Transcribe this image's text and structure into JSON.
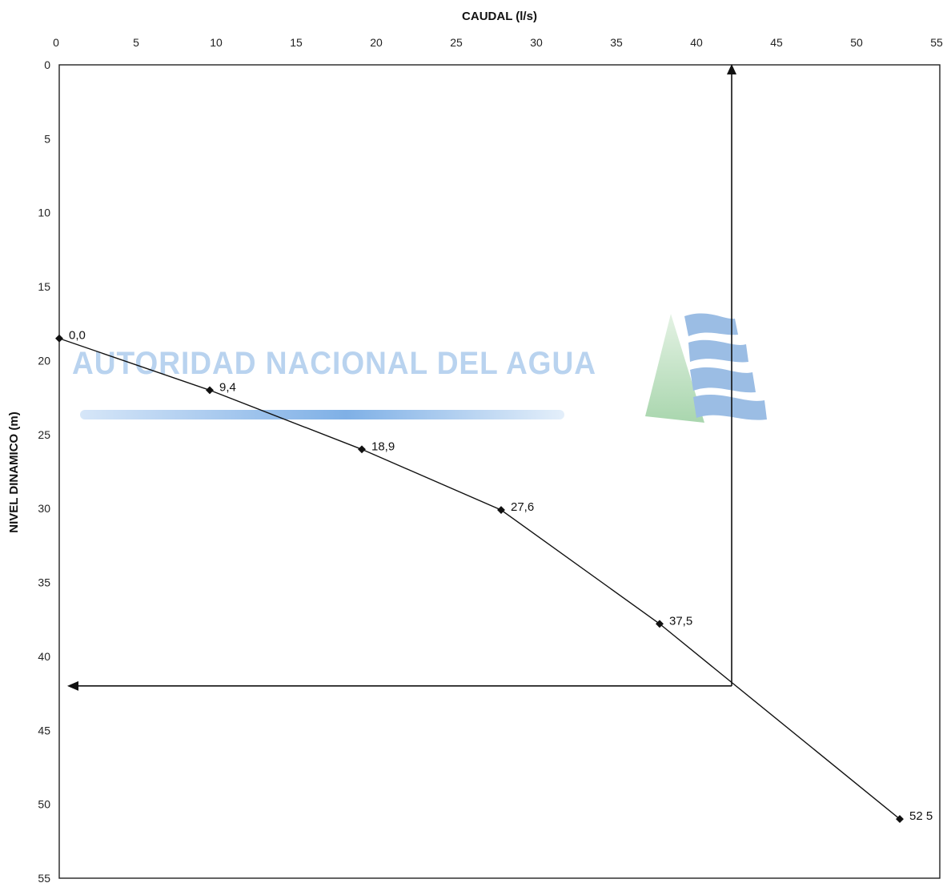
{
  "chart_data": {
    "type": "line",
    "xlabel": "CAUDAL (l/s)",
    "ylabel": "NIVEL DINAMICO (m)",
    "xlim": [
      0,
      55
    ],
    "ylim": [
      0,
      55
    ],
    "y_inverted": true,
    "x_axis_position": "top",
    "grid": false,
    "x_ticks": [
      "0",
      "5",
      "10",
      "15",
      "20",
      "25",
      "30",
      "35",
      "40",
      "45",
      "50",
      "55"
    ],
    "y_ticks": [
      "0",
      "5",
      "10",
      "15",
      "20",
      "25",
      "30",
      "35",
      "40",
      "45",
      "50",
      "55"
    ],
    "series": [
      {
        "x": [
          0,
          9.4,
          18.9,
          27.6,
          37.5,
          52.5
        ],
        "y": [
          18.5,
          22.0,
          26.0,
          30.1,
          37.8,
          51.0
        ],
        "labels": [
          "0,0",
          "9,4",
          "18,9",
          "27,6",
          "37,5",
          "52 5"
        ]
      }
    ],
    "annotations": {
      "operating_caudal": 42,
      "operating_nivel": 42
    }
  },
  "watermark": {
    "text": "AUTORIDAD NACIONAL DEL AGUA"
  }
}
